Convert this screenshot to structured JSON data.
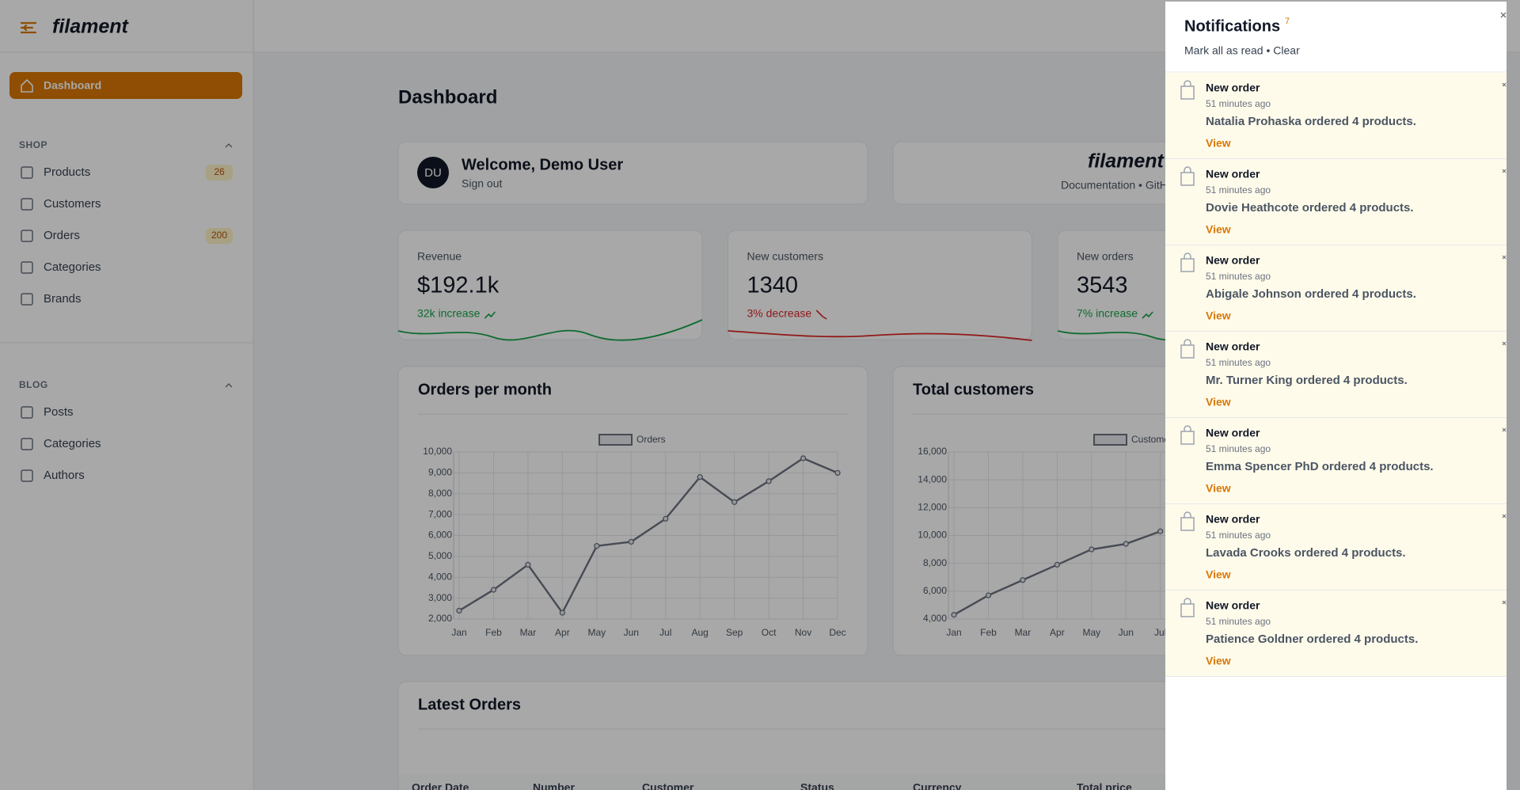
{
  "brand": "filament",
  "sidebar": {
    "active": "Dashboard",
    "groups": [
      {
        "label": "SHOP",
        "items": [
          {
            "label": "Products",
            "badge": "26"
          },
          {
            "label": "Customers"
          },
          {
            "label": "Orders",
            "badge": "200"
          },
          {
            "label": "Categories"
          },
          {
            "label": "Brands"
          }
        ]
      },
      {
        "label": "BLOG",
        "items": [
          {
            "label": "Posts"
          },
          {
            "label": "Categories"
          },
          {
            "label": "Authors"
          }
        ]
      }
    ]
  },
  "page_title": "Dashboard",
  "welcome": {
    "avatar": "DU",
    "title": "Welcome, Demo User",
    "action": "Sign out"
  },
  "info": {
    "brand": "filament",
    "links": "Documentation • GitHub"
  },
  "stats": [
    {
      "label": "Revenue",
      "value": "$192.1k",
      "description": "32k increase",
      "color": "#16a34a"
    },
    {
      "label": "New customers",
      "value": "1340",
      "description": "3% decrease",
      "color": "#dc2626"
    },
    {
      "label": "New orders",
      "value": "3543",
      "description": "7% increase",
      "color": "#16a34a"
    }
  ],
  "charts": [
    {
      "type": "line",
      "title": "Orders per month",
      "legend": "Orders",
      "color": "#6b7280",
      "categories": [
        "Jan",
        "Feb",
        "Mar",
        "Apr",
        "May",
        "Jun",
        "Jul",
        "Aug",
        "Sep",
        "Oct",
        "Nov",
        "Dec"
      ],
      "values": [
        2400,
        3400,
        4600,
        2300,
        5500,
        5700,
        6800,
        8800,
        7600,
        8600,
        9700,
        9000
      ],
      "ylim": [
        2000,
        10000
      ],
      "yticks": [
        {
          "value": 2000,
          "label": "2,000"
        },
        {
          "value": 3000,
          "label": "3,000"
        },
        {
          "value": 4000,
          "label": "4,000"
        },
        {
          "value": 5000,
          "label": "5,000"
        },
        {
          "value": 6000,
          "label": "6,000"
        },
        {
          "value": 7000,
          "label": "7,000"
        },
        {
          "value": 8000,
          "label": "8,000"
        },
        {
          "value": 9000,
          "label": "9,000"
        },
        {
          "value": 10000,
          "label": "10,000"
        }
      ],
      "grid": true
    },
    {
      "type": "line",
      "title": "Total customers",
      "legend": "Customers",
      "color": "#6b7280",
      "categories": [
        "Jan",
        "Feb",
        "Mar",
        "Apr",
        "May",
        "Jun",
        "Jul"
      ],
      "values": [
        4300,
        5700,
        6800,
        7900,
        9000,
        9400,
        10300
      ],
      "ylim": [
        4000,
        16000
      ],
      "yticks": [
        {
          "value": 4000,
          "label": "4,000"
        },
        {
          "value": 6000,
          "label": "6,000"
        },
        {
          "value": 8000,
          "label": "8,000"
        },
        {
          "value": 10000,
          "label": "10,000"
        },
        {
          "value": 12000,
          "label": "12,000"
        },
        {
          "value": 14000,
          "label": "14,000"
        },
        {
          "value": 16000,
          "label": "16,000"
        }
      ],
      "grid": true
    }
  ],
  "latest_orders": {
    "title": "Latest Orders",
    "columns": [
      "Order Date",
      "Number",
      "Customer",
      "Status",
      "Currency",
      "Total price"
    ]
  },
  "notifications": {
    "title": "Notifications",
    "count": 7,
    "actions": "Mark all as read • Clear",
    "items": [
      {
        "title": "New order",
        "time": "51 minutes ago",
        "body": "Natalia Prohaska ordered 4 products.",
        "action": "View"
      },
      {
        "title": "New order",
        "time": "51 minutes ago",
        "body": "Dovie Heathcote ordered 4 products.",
        "action": "View"
      },
      {
        "title": "New order",
        "time": "51 minutes ago",
        "body": "Abigale Johnson ordered 4 products.",
        "action": "View"
      },
      {
        "title": "New order",
        "time": "51 minutes ago",
        "body": "Mr. Turner King ordered 4 products.",
        "action": "View"
      },
      {
        "title": "New order",
        "time": "51 minutes ago",
        "body": "Emma Spencer PhD ordered 4 products.",
        "action": "View"
      },
      {
        "title": "New order",
        "time": "51 minutes ago",
        "body": "Lavada Crooks ordered 4 products.",
        "action": "View"
      },
      {
        "title": "New order",
        "time": "51 minutes ago",
        "body": "Patience Goldner ordered 4 products.",
        "action": "View"
      }
    ]
  }
}
